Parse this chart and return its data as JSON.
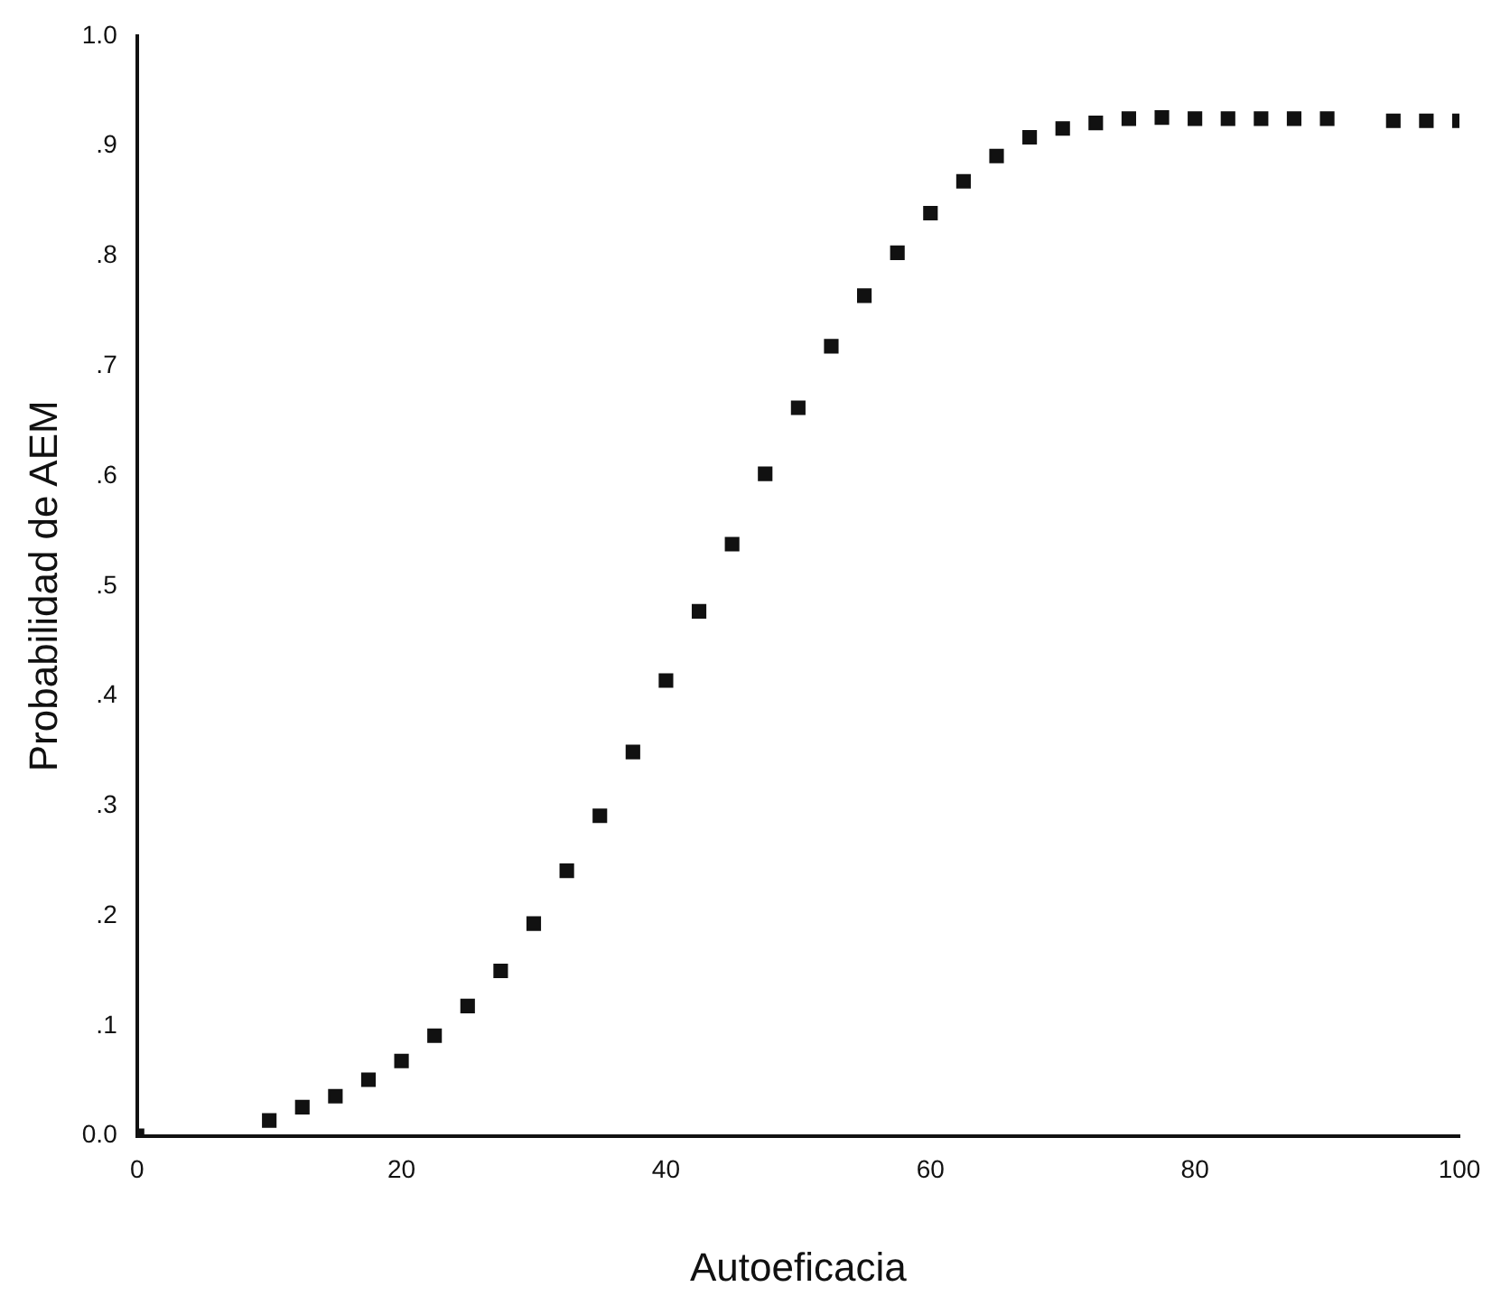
{
  "chart_data": {
    "type": "scatter",
    "xlabel": "Autoeficacia",
    "ylabel": "Probabilidad de AEM",
    "x": [
      0,
      10,
      12.5,
      15,
      17.5,
      20,
      22.5,
      25,
      27.5,
      30,
      32.5,
      35,
      37.5,
      40,
      42.5,
      45,
      47.5,
      50,
      52.5,
      55,
      57.5,
      60,
      62.5,
      65,
      67.5,
      70,
      72.5,
      75,
      77.5,
      80,
      82.5,
      85,
      87.5,
      90,
      95,
      97.5,
      100
    ],
    "values": [
      0,
      0.014,
      0.026,
      0.036,
      0.051,
      0.068,
      0.091,
      0.118,
      0.15,
      0.193,
      0.241,
      0.291,
      0.349,
      0.414,
      0.477,
      0.538,
      0.602,
      0.662,
      0.718,
      0.764,
      0.803,
      0.839,
      0.868,
      0.891,
      0.908,
      0.916,
      0.921,
      0.925,
      0.926,
      0.925,
      0.925,
      0.925,
      0.925,
      0.925,
      0.923,
      0.923,
      0.923
    ],
    "color": "#111111",
    "marker": "square",
    "grid": false,
    "legend": false,
    "xlim": [
      0,
      100
    ],
    "xticks": [
      0,
      20,
      40,
      60,
      80,
      100
    ],
    "ylim": [
      0,
      1
    ],
    "yticks": [
      {
        "value": 0,
        "label": "0.0"
      },
      {
        "value": 0.1,
        "label": ".1"
      },
      {
        "value": 0.2,
        "label": ".2"
      },
      {
        "value": 0.3,
        "label": ".3"
      },
      {
        "value": 0.4,
        "label": ".4"
      },
      {
        "value": 0.5,
        "label": ".5"
      },
      {
        "value": 0.6,
        "label": ".6"
      },
      {
        "value": 0.7,
        "label": ".7"
      },
      {
        "value": 0.8,
        "label": ".8"
      },
      {
        "value": 0.9,
        "label": ".9"
      },
      {
        "value": 1,
        "label": "1.0"
      }
    ]
  }
}
